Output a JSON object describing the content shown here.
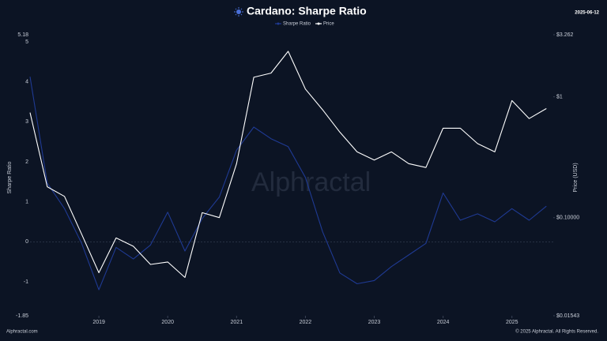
{
  "chart_data": {
    "type": "line",
    "title": "Cardano: Sharpe Ratio",
    "date": "2025-06-12",
    "ylabel": "Sharpe Ratio",
    "y2label": "Price (USD)",
    "watermark": "Alphractal",
    "footer_left": "Alphractal.com",
    "footer_right": "© 2025 Alphractal. All Rights Reserved.",
    "x": [
      2018.0,
      2018.25,
      2018.5,
      2018.75,
      2019.0,
      2019.25,
      2019.5,
      2019.75,
      2020.0,
      2020.25,
      2020.5,
      2020.75,
      2021.0,
      2021.25,
      2021.5,
      2021.75,
      2022.0,
      2022.25,
      2022.5,
      2022.75,
      2023.0,
      2023.25,
      2023.5,
      2023.75,
      2024.0,
      2024.25,
      2024.5,
      2024.75,
      2025.0,
      2025.25,
      2025.5
    ],
    "xlim": [
      2018.0,
      2025.6
    ],
    "xticks": [
      2019,
      2020,
      2021,
      2022,
      2023,
      2024,
      2025
    ],
    "ylim": [
      -1.85,
      5.18
    ],
    "yticks": [
      -1.85,
      -1,
      0,
      1,
      2,
      3,
      4,
      5,
      5.18
    ],
    "y2lim": [
      0.01543,
      3.262
    ],
    "y2ticks": [
      {
        "value": 0.01543,
        "label": "$0.01543"
      },
      {
        "value": 0.1,
        "label": "$0.10000"
      },
      {
        "value": 1,
        "label": "$1"
      },
      {
        "value": 3.262,
        "label": "$3.262"
      }
    ],
    "y2_log": true,
    "legend": "top",
    "series": [
      {
        "name": "Sharpe Ratio",
        "color": "#1f3a93",
        "values": [
          4.13,
          1.47,
          0.83,
          -0.04,
          -1.2,
          -0.14,
          -0.43,
          -0.08,
          0.74,
          -0.23,
          0.58,
          1.12,
          2.29,
          2.87,
          2.58,
          2.38,
          1.61,
          0.25,
          -0.78,
          -1.05,
          -0.97,
          -0.62,
          -0.33,
          -0.04,
          1.22,
          0.54,
          0.7,
          0.5,
          0.83,
          0.54,
          0.89
        ]
      },
      {
        "name": "Price",
        "color": "#ffffff",
        "axis": "y2",
        "values": [
          0.74,
          0.18,
          0.15,
          0.073,
          0.035,
          0.068,
          0.058,
          0.041,
          0.043,
          0.032,
          0.11,
          0.1,
          0.28,
          1.45,
          1.57,
          2.38,
          1.16,
          0.78,
          0.51,
          0.35,
          0.3,
          0.35,
          0.28,
          0.26,
          0.55,
          0.55,
          0.41,
          0.35,
          0.93,
          0.66,
          0.8
        ]
      }
    ]
  }
}
